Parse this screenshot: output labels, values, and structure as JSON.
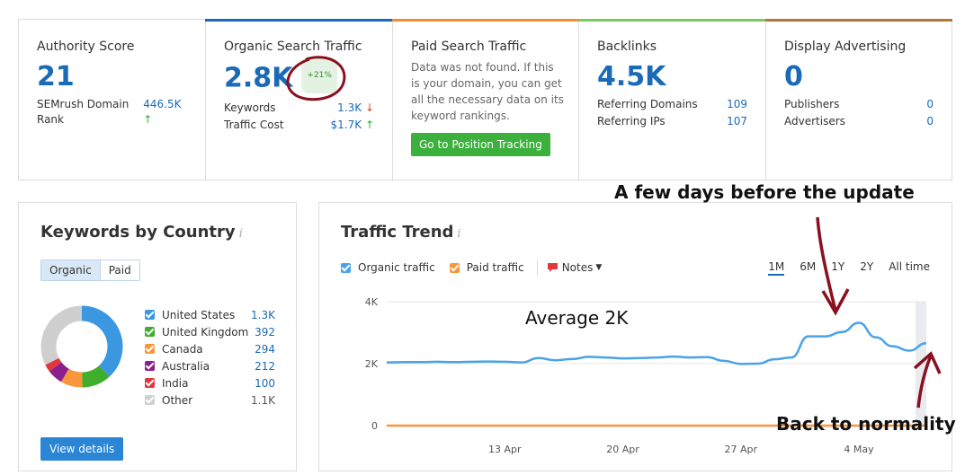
{
  "metrics": {
    "authority": {
      "label": "Authority Score",
      "value": "21",
      "rows": [
        {
          "label": "SEMrush Domain Rank",
          "value": "446.5K",
          "arrow": "↑"
        }
      ]
    },
    "organic": {
      "label": "Organic Search Traffic",
      "value": "2.8K",
      "badge": "+21%",
      "rows": [
        {
          "label": "Keywords",
          "value": "1.3K",
          "arrow": "↓"
        },
        {
          "label": "Traffic Cost",
          "value": "$1.7K",
          "arrow": "↑"
        }
      ]
    },
    "paid": {
      "label": "Paid Search Traffic",
      "text": "Data was not found. If this is your domain, you can get all the necessary data on its keyword rankings.",
      "button": "Go to Position Tracking"
    },
    "backlinks": {
      "label": "Backlinks",
      "value": "4.5K",
      "rows": [
        {
          "label": "Referring Domains",
          "value": "109"
        },
        {
          "label": "Referring IPs",
          "value": "107"
        }
      ]
    },
    "display": {
      "label": "Display Advertising",
      "value": "0",
      "rows": [
        {
          "label": "Publishers",
          "value": "0"
        },
        {
          "label": "Advertisers",
          "value": "0"
        }
      ]
    }
  },
  "colors": {
    "organic_topline": "#1a6ab8",
    "paid_topline": "#f08c3a",
    "backlinks_topline": "#7ccc5c",
    "display_topline": "#b07a3a",
    "accent": "#1a6ab8"
  },
  "keywords": {
    "title": "Keywords by Country",
    "tabs": [
      "Organic",
      "Paid"
    ],
    "countries": [
      {
        "name": "United States",
        "value": "1.3K",
        "color": "#3b97e0"
      },
      {
        "name": "United Kingdom",
        "value": "392",
        "color": "#3fae2a"
      },
      {
        "name": "Canada",
        "value": "294",
        "color": "#f7963a"
      },
      {
        "name": "Australia",
        "value": "212",
        "color": "#8b1f8e"
      },
      {
        "name": "India",
        "value": "100",
        "color": "#e2383d"
      },
      {
        "name": "Other",
        "value": "1.1K",
        "color": "#cfcfcf"
      }
    ],
    "view_details": "View details"
  },
  "trend": {
    "title": "Traffic Trend",
    "organic_label": "Organic traffic",
    "paid_label": "Paid traffic",
    "notes_label": "Notes",
    "ranges": [
      "1M",
      "6M",
      "1Y",
      "2Y",
      "All time"
    ],
    "selected_range": "1M",
    "annotations": {
      "avg": "Average 2K",
      "before": "A few days before the update",
      "after": "Back to normality"
    }
  },
  "chart_data": {
    "type": "line",
    "title": "Traffic Trend",
    "y_ticks": [
      "4K",
      "2K",
      "0"
    ],
    "ylim": [
      0,
      4000
    ],
    "x_ticks": [
      "13 Apr",
      "20 Apr",
      "27 Apr",
      "4 May"
    ],
    "x": [
      "Apr 6",
      "Apr 7",
      "Apr 8",
      "Apr 9",
      "Apr 10",
      "Apr 11",
      "Apr 12",
      "Apr 13",
      "Apr 14",
      "Apr 15",
      "Apr 16",
      "Apr 17",
      "Apr 18",
      "Apr 19",
      "Apr 20",
      "Apr 21",
      "Apr 22",
      "Apr 23",
      "Apr 24",
      "Apr 25",
      "Apr 26",
      "Apr 27",
      "Apr 28",
      "Apr 29",
      "Apr 30",
      "May 1",
      "May 2",
      "May 3",
      "May 4",
      "May 5",
      "May 6",
      "May 7",
      "May 8"
    ],
    "series": [
      {
        "name": "Organic traffic",
        "color": "#4aa3e8",
        "values": [
          2040,
          2050,
          2050,
          2060,
          2050,
          2060,
          2070,
          2060,
          2040,
          2180,
          2110,
          2150,
          2220,
          2200,
          2170,
          2180,
          2200,
          2230,
          2200,
          2210,
          2090,
          1990,
          2000,
          2140,
          2200,
          2880,
          2880,
          3020,
          3320,
          2850,
          2560,
          2420,
          2660
        ]
      },
      {
        "name": "Paid traffic",
        "color": "#f7963a",
        "values": [
          0,
          0,
          0,
          0,
          0,
          0,
          0,
          0,
          0,
          0,
          0,
          0,
          0,
          0,
          0,
          0,
          0,
          0,
          0,
          0,
          0,
          0,
          0,
          0,
          0,
          0,
          0,
          0,
          0,
          0,
          0,
          0,
          0
        ]
      }
    ],
    "grid": true
  }
}
